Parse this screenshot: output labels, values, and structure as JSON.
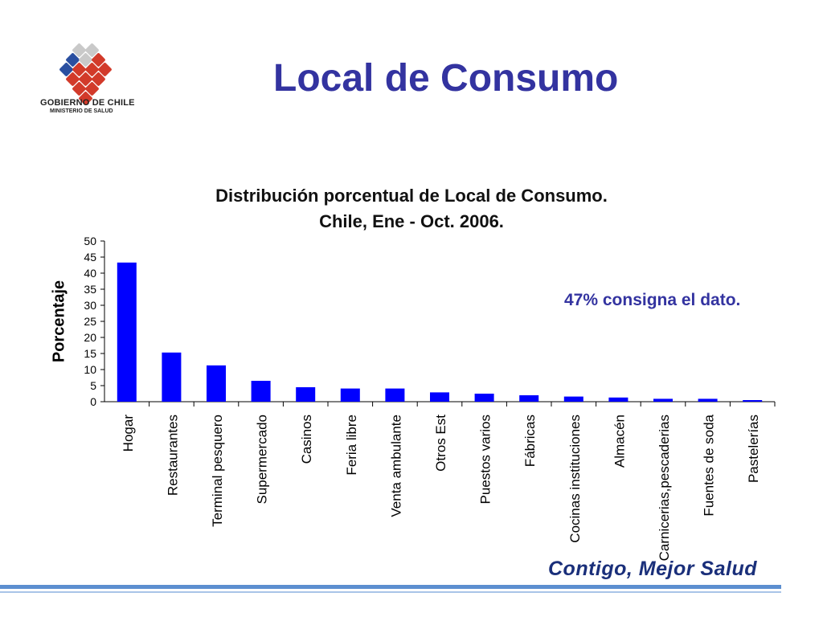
{
  "slide": {
    "title": "Local de Consumo",
    "annotation": "47% consigna el dato.",
    "logo_line1": "GOBIERNO DE CHILE",
    "logo_line2": "MINISTERIO DE SALUD",
    "footer_brand": "Contigo, Mejor Salud"
  },
  "colors": {
    "title": "#3333a0",
    "bar": "#0000ff",
    "footer_line": "#5c8fd0"
  },
  "chart_data": {
    "type": "bar",
    "title_line1": "Distribución porcentual de Local de Consumo.",
    "title_line2": "Chile, Ene - Oct. 2006.",
    "xlabel": "",
    "ylabel": "Porcentaje",
    "ylim": [
      0,
      50
    ],
    "yticks": [
      0,
      5,
      10,
      15,
      20,
      25,
      30,
      35,
      40,
      45,
      50
    ],
    "grid": false,
    "categories": [
      "Hogar",
      "Restaurantes",
      "Terminal pesquero",
      "Supermercado",
      "Casinos",
      "Feria libre",
      "Venta ambulante",
      "Otros Est",
      "Puestos varios",
      "Fábricas",
      "Cocinas instituciones",
      "Almacén",
      "Carnicerias,pescaderias",
      "Fuentes de soda",
      "Pastelerías"
    ],
    "values": [
      43.3,
      15.3,
      11.3,
      6.5,
      4.5,
      4.1,
      4.1,
      2.9,
      2.5,
      2.0,
      1.6,
      1.3,
      0.9,
      0.9,
      0.5
    ]
  }
}
